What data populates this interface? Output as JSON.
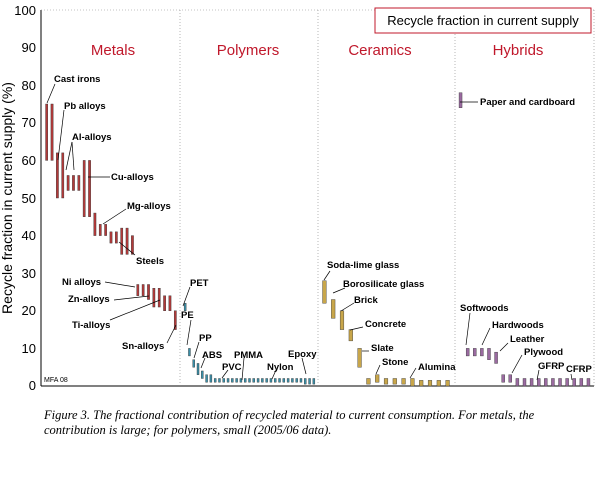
{
  "chart_data": {
    "type": "bar",
    "title": "Recycle fraction in current supply",
    "ylabel": "Recycle fraction in current supply (%)",
    "xlabel": "",
    "ylim": [
      0,
      100
    ],
    "yticks": [
      "0",
      "10",
      "20",
      "30",
      "40",
      "50",
      "60",
      "70",
      "80",
      "90",
      "100"
    ],
    "grid": "vertical dotted separators between groups",
    "groups": [
      {
        "name": "Metals",
        "color": "#b23a3a"
      },
      {
        "name": "Polymers",
        "color": "#3a8fa8"
      },
      {
        "name": "Ceramics",
        "color": "#c8a64a"
      },
      {
        "name": "Hybrids",
        "color": "#9a6aa0"
      }
    ],
    "series": [
      {
        "group": "Metals",
        "ranges": [
          [
            60,
            75
          ],
          [
            60,
            75
          ],
          [
            50,
            62
          ],
          [
            50,
            62
          ],
          [
            52,
            56
          ],
          [
            52,
            56
          ],
          [
            52,
            56
          ],
          [
            45,
            60
          ],
          [
            45,
            60
          ],
          [
            40,
            46
          ],
          [
            40,
            43
          ],
          [
            40,
            43
          ],
          [
            38,
            41
          ],
          [
            38,
            41
          ],
          [
            35,
            42
          ],
          [
            35,
            42
          ],
          [
            35,
            40
          ],
          [
            24,
            27
          ],
          [
            24,
            27
          ],
          [
            23,
            27
          ],
          [
            21,
            26
          ],
          [
            21,
            26
          ],
          [
            20,
            24
          ],
          [
            20,
            24
          ],
          [
            15,
            20
          ]
        ]
      },
      {
        "group": "Polymers",
        "ranges": [
          [
            20,
            22
          ],
          [
            8,
            10
          ],
          [
            5,
            7
          ],
          [
            3,
            6
          ],
          [
            2,
            4
          ],
          [
            1,
            3
          ],
          [
            1,
            3
          ],
          [
            1,
            2
          ],
          [
            1,
            2
          ],
          [
            1,
            2
          ],
          [
            1,
            2
          ],
          [
            1,
            2
          ],
          [
            1,
            2
          ],
          [
            1,
            2
          ],
          [
            1,
            2
          ],
          [
            1,
            2
          ],
          [
            1,
            2
          ],
          [
            1,
            2
          ],
          [
            1,
            2
          ],
          [
            1,
            2
          ],
          [
            1,
            2
          ],
          [
            1,
            2
          ],
          [
            1,
            2
          ],
          [
            1,
            2
          ],
          [
            1,
            2
          ],
          [
            1,
            2
          ],
          [
            1,
            2
          ],
          [
            1,
            2
          ],
          [
            0.5,
            2
          ],
          [
            0.5,
            2
          ],
          [
            0.5,
            2
          ]
        ]
      },
      {
        "group": "Ceramics",
        "ranges": [
          [
            22,
            28
          ],
          [
            18,
            23
          ],
          [
            15,
            20
          ],
          [
            12,
            15
          ],
          [
            5,
            10
          ],
          [
            0.5,
            2
          ],
          [
            1,
            3
          ],
          [
            0.5,
            2
          ],
          [
            0.5,
            2
          ],
          [
            0.5,
            2
          ],
          [
            0,
            2
          ],
          [
            0,
            1.5
          ],
          [
            0,
            1.5
          ],
          [
            0,
            1.5
          ],
          [
            0,
            1.5
          ]
        ]
      },
      {
        "group": "Hybrids",
        "ranges": [
          [
            74,
            78
          ],
          [
            8,
            10
          ],
          [
            8,
            10
          ],
          [
            8,
            10
          ],
          [
            7,
            10
          ],
          [
            6,
            9
          ],
          [
            1,
            3
          ],
          [
            1,
            3
          ],
          [
            0,
            2
          ],
          [
            0,
            2
          ],
          [
            0,
            2
          ],
          [
            0,
            2
          ],
          [
            0,
            2
          ],
          [
            0,
            2
          ],
          [
            0,
            2
          ],
          [
            0,
            2
          ],
          [
            0,
            2
          ],
          [
            0,
            2
          ],
          [
            0,
            2
          ]
        ]
      }
    ],
    "annotations": [
      "Cast irons",
      "Pb alloys",
      "Al-alloys",
      "Cu-alloys",
      "Mg-alloys",
      "Steels",
      "Ni alloys",
      "Zn-alloys",
      "Ti-alloys",
      "Sn-alloys",
      "PET",
      "PE",
      "PP",
      "ABS",
      "PVC",
      "PMMA",
      "Nylon",
      "Epoxy",
      "Soda-lime glass",
      "Borosilicate glass",
      "Brick",
      "Concrete",
      "Slate",
      "Stone",
      "Alumina",
      "Paper and cardboard",
      "Softwoods",
      "Hardwoods",
      "Leather",
      "Plywood",
      "GFRP",
      "CFRP"
    ],
    "stamp": "MFA 08"
  },
  "caption": "Figure 3.  The fractional contribution of recycled material to current consumption.  For metals, the contribution is large; for polymers, small (2005/06 data)."
}
